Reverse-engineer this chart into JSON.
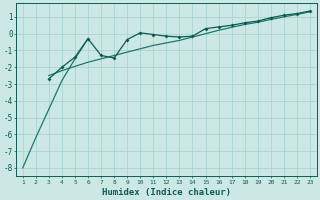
{
  "xlabel": "Humidex (Indice chaleur)",
  "bg_color": "#cce8e4",
  "grid_color": "#aad4d0",
  "line_color_thin": "#1a7a6e",
  "line_color_main": "#0d5c52",
  "xlim": [
    0.5,
    23.5
  ],
  "ylim": [
    -8.5,
    1.8
  ],
  "xticks": [
    1,
    2,
    3,
    4,
    5,
    6,
    7,
    8,
    9,
    10,
    11,
    12,
    13,
    14,
    15,
    16,
    17,
    18,
    19,
    20,
    21,
    22,
    23
  ],
  "yticks": [
    1,
    0,
    -1,
    -2,
    -3,
    -4,
    -5,
    -6,
    -7,
    -8
  ],
  "line1_x": [
    1,
    2,
    3,
    4,
    5,
    6
  ],
  "line1_y": [
    -8.0,
    -6.2,
    -4.5,
    -2.8,
    -1.5,
    -0.3
  ],
  "line2_x": [
    3,
    4,
    5,
    6,
    7,
    8,
    9,
    10,
    11,
    12,
    13,
    14,
    15,
    16,
    17,
    18,
    19,
    20,
    21,
    22,
    23
  ],
  "line2_y": [
    -2.7,
    -2.0,
    -1.4,
    -0.3,
    -1.3,
    -1.45,
    -0.35,
    0.05,
    -0.05,
    -0.15,
    -0.2,
    -0.15,
    0.3,
    0.4,
    0.5,
    0.65,
    0.75,
    0.95,
    1.1,
    1.2,
    1.35
  ],
  "line3_x": [
    3,
    4,
    5,
    6,
    7,
    8,
    9,
    10,
    11,
    12,
    13,
    14,
    15,
    16,
    17,
    18,
    19,
    20,
    21,
    22,
    23
  ],
  "line3_y": [
    -2.5,
    -2.2,
    -1.95,
    -1.7,
    -1.5,
    -1.3,
    -1.1,
    -0.9,
    -0.7,
    -0.55,
    -0.4,
    -0.2,
    0.0,
    0.2,
    0.38,
    0.55,
    0.68,
    0.85,
    1.0,
    1.15,
    1.3
  ]
}
